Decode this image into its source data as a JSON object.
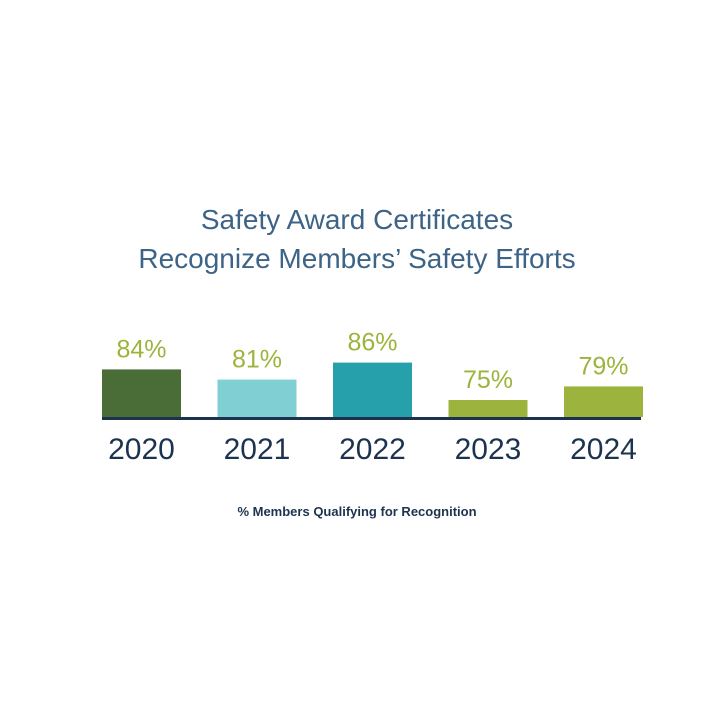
{
  "chart_data": {
    "type": "bar",
    "title": "Safety Award Certificates",
    "subtitle": "Recognize Members’ Safety Efforts",
    "categories": [
      "2020",
      "2021",
      "2022",
      "2023",
      "2024"
    ],
    "values": [
      84,
      81,
      86,
      75,
      79
    ],
    "value_labels": [
      "84%",
      "81%",
      "86%",
      "75%",
      "79%"
    ],
    "bar_colors": [
      "#4a6d38",
      "#7fcfd3",
      "#26a0ab",
      "#9cb43d",
      "#9cb43d"
    ],
    "value_label_color": "#9cb43d",
    "xlabel": "% Members Qualifying for Recognition",
    "ylabel": "",
    "axis_color": "#1c3350",
    "year_label_color": "#1c3350",
    "grid": false,
    "legend": "none"
  }
}
